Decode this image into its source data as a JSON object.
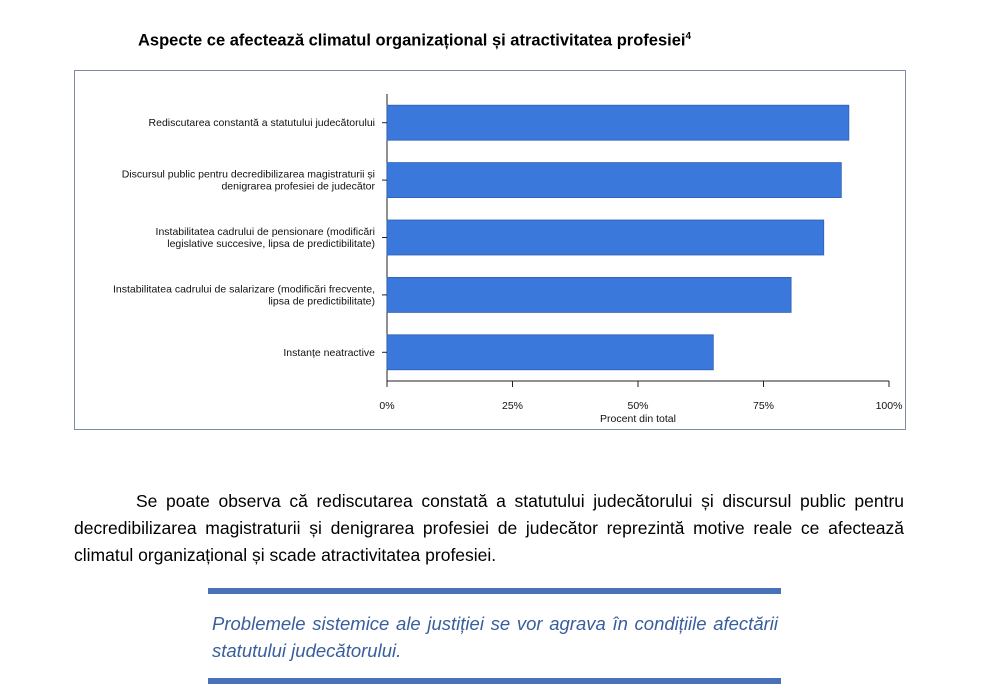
{
  "page": {
    "title": "Aspecte ce afectează climatul organizațional și atractivitatea profesiei",
    "title_footnote": "4",
    "paragraph": "Se poate observa că rediscutarea constată a statutului judecătorului și discursul public pentru decredibilizarea magistraturii și denigrarea profesiei de judecător reprezintă motive reale ce afectează climatul organizațional și scade atractivitatea profesiei.",
    "quote": "Problemele sistemice ale justiției se vor agrava în condițiile afectării statutului judecătorului."
  },
  "colors": {
    "bar": "#3b78db",
    "bar_edge": "#2e5fb5",
    "quote": "#385e9d",
    "rule": "#4a72b8",
    "frame": "#7f8aa3"
  },
  "chart_data": {
    "type": "bar",
    "orientation": "horizontal",
    "categories": [
      [
        "Rediscutarea constantă a statutului judecătorului"
      ],
      [
        "Discursul public pentru decredibilizarea magistraturii și",
        "denigrarea profesiei de judecător"
      ],
      [
        "Instabilitatea cadrului de pensionare (modificări",
        "legislative succesive, lipsa de predictibilitate)"
      ],
      [
        "Instabilitatea cadrului de salarizare (modificări frecvente,",
        "lipsa de predictibilitate)"
      ],
      [
        "Instanțe neatractive"
      ]
    ],
    "values": [
      92,
      90.5,
      87,
      80.5,
      65
    ],
    "xlim": [
      0,
      100
    ],
    "xticks": [
      0,
      25,
      50,
      75,
      100
    ],
    "xtick_labels": [
      "0%",
      "25%",
      "50%",
      "75%",
      "100%"
    ],
    "xlabel": "Procent din total",
    "ylabel": "",
    "grid": false,
    "legend": false
  }
}
